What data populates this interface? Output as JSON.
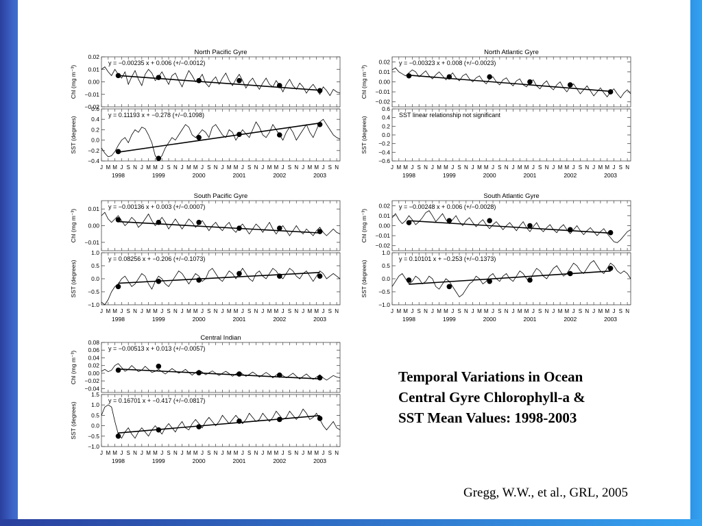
{
  "slide": {
    "heading_lines": [
      "Temporal Variations in Ocean",
      "Central Gyre Chlorophyll-a &",
      "SST Mean Values: 1998-2003"
    ],
    "citation": "Gregg, W.W., et al., GRL,  2005"
  },
  "colors": {
    "ink": "#000000",
    "axis": "#444444",
    "background": "#ffffff",
    "frame_left": "#2a3f9e",
    "frame_right": "#35a2f0"
  },
  "x_axis": {
    "month_letters": [
      "J",
      "M",
      "M",
      "J",
      "S",
      "N",
      "J",
      "M",
      "M",
      "J",
      "S",
      "N",
      "J",
      "M",
      "M",
      "J",
      "S",
      "N",
      "J",
      "M",
      "M",
      "J",
      "S",
      "N",
      "J",
      "M",
      "M",
      "J",
      "S",
      "N",
      "J",
      "M",
      "M",
      "J",
      "S",
      "N"
    ],
    "year_labels": [
      "1998",
      "1999",
      "2000",
      "2001",
      "2002",
      "2003"
    ],
    "range_months": [
      0,
      71
    ]
  },
  "chart_data": [
    {
      "type": "line",
      "title": "North Pacific Gyre",
      "ylabel": "Chl (mg m⁻³)",
      "ylim": [
        -0.02,
        0.02
      ],
      "yticks": [
        "0.02",
        "0.01",
        "0.00",
        "−0.01",
        "−0.02"
      ],
      "fit_label": "y = −0.00235 x + 0.006   (+/−0.0012)",
      "fit": {
        "slope_per_year": -0.00235,
        "intercept": 0.006
      },
      "annual_points": [
        0.005,
        0.0035,
        0.001,
        0.001,
        -0.003,
        -0.007
      ],
      "series": [
        {
          "values": [
            0.01,
            0.012,
            0.008,
            0.005,
            0.01,
            0.006,
            0.003,
            0.008,
            -0.002,
            0.004,
            0.009,
            0.002,
            -0.003,
            0.006,
            0.01,
            0.007,
            0.001,
            0.004,
            0.008,
            0.003,
            -0.002,
            0.005,
            0.007,
            0.001,
            -0.004,
            0.003,
            0.009,
            0.005,
            0,
            0.002,
            0.006,
            -0.001,
            -0.004,
            0.001,
            0.004,
            -0.002,
            0.003,
            0.007,
            0.001,
            -0.003,
            0.002,
            0.006,
            0.001,
            -0.005,
            0,
            0.003,
            -0.002,
            -0.006,
            -0.001,
            0.003,
            -0.002,
            -0.004,
            0.001,
            -0.003,
            -0.008,
            -0.002,
            0.002,
            -0.003,
            -0.006,
            -0.001,
            -0.004,
            -0.009,
            -0.005,
            -0.002,
            -0.006,
            -0.01,
            -0.004,
            -0.007,
            -0.011,
            -0.006,
            -0.008,
            -0.009
          ]
        }
      ]
    },
    {
      "type": "line",
      "title": "",
      "ylabel": "SST (degrees)",
      "ylim": [
        -0.4,
        0.6
      ],
      "yticks": [
        "0.6",
        "0.4",
        "0.2",
        "0.0",
        "−0.2",
        "−0.4"
      ],
      "fit_label": "y = 0.11193 x + −0.278   (+/−0.1098)",
      "fit": {
        "slope_per_year": 0.11193,
        "intercept": -0.278
      },
      "annual_points": [
        -0.22,
        -0.35,
        0.05,
        0.11,
        0.1,
        0.3
      ],
      "series": [
        {
          "values": [
            -0.15,
            -0.25,
            -0.32,
            -0.3,
            -0.22,
            -0.1,
            0,
            0.05,
            -0.05,
            0.1,
            0.2,
            0.15,
            0.25,
            0.22,
            0.1,
            -0.05,
            -0.3,
            -0.38,
            -0.3,
            -0.15,
            -0.05,
            0.05,
            0,
            0.1,
            0.2,
            0.3,
            0.25,
            0.1,
            0.05,
            0.12,
            0.2,
            0.15,
            0.05,
            0.25,
            0.3,
            0.2,
            0.1,
            0.05,
            0.2,
            0.15,
            0,
            0.1,
            0.2,
            0.12,
            0.05,
            0.2,
            0.35,
            0.25,
            0.1,
            0.05,
            0.15,
            0.3,
            0.2,
            0.1,
            0,
            0.15,
            0.25,
            0.15,
            0,
            0.1,
            0.2,
            0.3,
            0.15,
            0.05,
            0.2,
            0.35,
            0.4,
            0.3,
            0.2,
            0.1,
            0.05,
            0.02
          ]
        }
      ]
    },
    {
      "type": "line",
      "title": "North Atlantic Gyre",
      "ylabel": "Chl (mg m⁻³)",
      "ylim": [
        -0.025,
        0.025
      ],
      "yticks": [
        "0.02",
        "0.01",
        "0.00",
        "−0.01",
        "−0.02"
      ],
      "fit_label": "y = −0.00323 x + 0.008   (+/−0.0023)",
      "fit": {
        "slope_per_year": -0.00323,
        "intercept": 0.008
      },
      "annual_points": [
        0.006,
        0.005,
        0.005,
        0.0,
        -0.003,
        -0.01
      ],
      "series": [
        {
          "values": [
            0.012,
            0.014,
            0.01,
            0.008,
            0.006,
            0.009,
            0.012,
            0.01,
            0.005,
            0.008,
            0.011,
            0.006,
            0.003,
            0.007,
            0.01,
            0.006,
            0.002,
            0.005,
            0.009,
            0.004,
            0.001,
            0.006,
            0.008,
            0.003,
            0,
            0.004,
            0.006,
            0.001,
            -0.002,
            0.003,
            0.005,
            0,
            -0.003,
            0.002,
            0.004,
            -0.001,
            -0.004,
            0.001,
            0.003,
            -0.003,
            -0.005,
            0,
            0.002,
            -0.004,
            -0.007,
            -0.002,
            0.001,
            -0.005,
            -0.008,
            -0.003,
            0,
            -0.006,
            -0.01,
            -0.005,
            -0.002,
            -0.007,
            -0.012,
            -0.008,
            -0.004,
            -0.009,
            -0.014,
            -0.01,
            -0.006,
            -0.011,
            -0.015,
            -0.01,
            -0.007,
            -0.012,
            -0.016,
            -0.011,
            -0.008,
            -0.012
          ]
        }
      ]
    },
    {
      "type": "line",
      "title": "",
      "ylabel": "SST (degrees)",
      "ylim": [
        -0.6,
        0.6
      ],
      "yticks": [
        "0.6",
        "0.4",
        "0.2",
        "0.0",
        "−0.2",
        "−0.4",
        "−0.6"
      ],
      "fit_label": "SST linear relationship not significant",
      "fit": null,
      "annual_points": [],
      "series": []
    },
    {
      "type": "line",
      "title": "South Pacific Gyre",
      "ylabel": "Chl (mg m⁻³)",
      "ylim": [
        -0.015,
        0.015
      ],
      "yticks": [
        "0.01",
        "0.00",
        "−0.01"
      ],
      "fit_label": "y = −0.00136 x + 0.003   (+/−0.0007)",
      "fit": {
        "slope_per_year": -0.00136,
        "intercept": 0.003
      },
      "annual_points": [
        0.0035,
        0.002,
        0.002,
        -0.0015,
        -0.0015,
        -0.0035
      ],
      "series": [
        {
          "values": [
            0.006,
            0.008,
            0.004,
            0.002,
            0.004,
            0.006,
            0.003,
            0,
            0.002,
            0.005,
            0.003,
            -0.001,
            0.001,
            0.004,
            0.007,
            0.003,
            0,
            0.002,
            0.005,
            0.002,
            -0.002,
            0.001,
            0.004,
            0.001,
            -0.002,
            0.001,
            0.004,
            0.002,
            -0.001,
            0.001,
            0.003,
            0,
            -0.003,
            0,
            0.002,
            -0.001,
            -0.003,
            0,
            0.002,
            -0.002,
            -0.004,
            -0.001,
            0.001,
            -0.002,
            -0.005,
            -0.002,
            0.001,
            -0.001,
            -0.004,
            -0.001,
            0.002,
            -0.002,
            -0.005,
            -0.002,
            0,
            -0.003,
            -0.006,
            -0.003,
            0,
            -0.003,
            -0.005,
            -0.002,
            -0.004,
            -0.006,
            -0.003,
            -0.001,
            -0.004,
            -0.006,
            -0.004,
            -0.002,
            -0.004,
            -0.005
          ]
        }
      ]
    },
    {
      "type": "line",
      "title": "",
      "ylabel": "SST (degrees)",
      "ylim": [
        -1.0,
        1.0
      ],
      "yticks": [
        "1.0",
        "0.5",
        "0.0",
        "−0.5",
        "−1.0"
      ],
      "fit_label": "y = 0.08256 x + −0.206   (+/−0.1073)",
      "fit": {
        "slope_per_year": 0.08256,
        "intercept": -0.206
      },
      "annual_points": [
        -0.3,
        -0.1,
        -0.05,
        0.2,
        0.1,
        0.1
      ],
      "series": [
        {
          "values": [
            -0.9,
            -1.0,
            -0.8,
            -0.5,
            -0.3,
            -0.2,
            0,
            0.1,
            -0.1,
            -0.3,
            -0.2,
            0,
            0.2,
            0.1,
            -0.2,
            -0.4,
            -0.1,
            0.1,
            0,
            -0.2,
            -0.3,
            -0.1,
            0.1,
            0.3,
            0.2,
            0,
            -0.2,
            0,
            0.2,
            0.1,
            -0.1,
            0,
            0.3,
            0.4,
            0.2,
            0,
            -0.1,
            0.1,
            0.3,
            0.2,
            0,
            0.2,
            0.4,
            0.2,
            0,
            -0.1,
            0.2,
            0.3,
            0.1,
            0,
            0.2,
            0.4,
            0.3,
            0.1,
            0,
            0.2,
            0.4,
            0.3,
            0.1,
            0,
            0.2,
            0.3,
            0.1,
            -0.1,
            0.1,
            0.3,
            0.2,
            0,
            0.1,
            0.2,
            0.1,
            0
          ]
        }
      ]
    },
    {
      "type": "line",
      "title": "South Atlantic Gyre",
      "ylabel": "Chl (mg m⁻³)",
      "ylim": [
        -0.025,
        0.025
      ],
      "yticks": [
        "0.02",
        "0.01",
        "0.00",
        "−0.01",
        "−0.02"
      ],
      "fit_label": "y = −0.00248 x + 0.006   (+/−0.0028)",
      "fit": {
        "slope_per_year": -0.00248,
        "intercept": 0.006
      },
      "annual_points": [
        0.003,
        0.005,
        0.005,
        0.0,
        -0.004,
        -0.007
      ],
      "series": [
        {
          "values": [
            0.008,
            0.012,
            0.006,
            0.002,
            0.005,
            0.01,
            0.006,
            0.001,
            0.004,
            0.008,
            0.013,
            0.015,
            0.01,
            0.004,
            0.008,
            0.012,
            0.006,
            0.002,
            0.006,
            0.01,
            0.004,
            0,
            0.005,
            0.008,
            0.003,
            -0.001,
            0.003,
            0.006,
            0.001,
            -0.003,
            0.001,
            0.004,
            0,
            -0.004,
            0,
            0.003,
            -0.001,
            -0.005,
            0,
            0.004,
            -0.002,
            -0.006,
            -0.001,
            0.003,
            -0.003,
            -0.006,
            -0.002,
            0.001,
            -0.004,
            -0.007,
            -0.002,
            0.001,
            -0.004,
            -0.008,
            -0.004,
            0,
            -0.005,
            -0.009,
            -0.005,
            -0.002,
            -0.006,
            -0.01,
            -0.006,
            -0.003,
            -0.008,
            -0.012,
            -0.016,
            -0.017,
            -0.014,
            -0.01,
            -0.006,
            -0.004
          ]
        }
      ]
    },
    {
      "type": "line",
      "title": "",
      "ylabel": "SST (degrees)",
      "ylim": [
        -1.0,
        1.0
      ],
      "yticks": [
        "1.0",
        "0.5",
        "0.0",
        "−0.5",
        "−1.0"
      ],
      "fit_label": "y = 0.10101 x + −0.253   (+/−0.1373)",
      "fit": {
        "slope_per_year": 0.10101,
        "intercept": -0.253
      },
      "annual_points": [
        -0.05,
        -0.3,
        -0.1,
        -0.05,
        0.2,
        0.4
      ],
      "series": [
        {
          "values": [
            -0.3,
            -0.1,
            0.1,
            0.2,
            0,
            -0.2,
            -0.1,
            0.1,
            0,
            -0.2,
            -0.1,
            0.1,
            0,
            -0.3,
            -0.4,
            -0.2,
            0,
            -0.1,
            -0.3,
            -0.5,
            -0.7,
            -0.6,
            -0.4,
            -0.2,
            -0.1,
            0.1,
            0,
            -0.2,
            -0.1,
            0.1,
            0.2,
            0,
            -0.1,
            0.1,
            0.2,
            0,
            -0.1,
            0.1,
            0.3,
            0.2,
            0,
            -0.1,
            0.2,
            0.4,
            0.3,
            0.1,
            0,
            0.2,
            0.4,
            0.5,
            0.3,
            0.1,
            0.2,
            0.4,
            0.6,
            0.5,
            0.3,
            0.2,
            0.4,
            0.6,
            0.7,
            0.5,
            0.3,
            0.2,
            0.4,
            0.6,
            0.5,
            0.3,
            0.2,
            0.3,
            0.2,
            0
          ]
        }
      ]
    },
    {
      "type": "line",
      "title": "Central Indian",
      "ylabel": "Chl (mg m⁻³)",
      "ylim": [
        -0.05,
        0.08
      ],
      "yticks": [
        "0.08",
        "0.06",
        "0.04",
        "0.02",
        "0.00",
        "−0.02",
        "−0.04"
      ],
      "fit_label": "y = −0.00513 x + 0.013   (+/−0.0057)",
      "fit": {
        "slope_per_year": -0.00513,
        "intercept": 0.013
      },
      "annual_points": [
        0.008,
        0.018,
        0.001,
        -0.002,
        -0.005,
        -0.012
      ],
      "series": [
        {
          "values": [
            0.005,
            0.01,
            0.004,
            0.008,
            0.02,
            0.025,
            0.015,
            0.005,
            0.01,
            0.02,
            0.012,
            0.004,
            0.008,
            0.018,
            0.01,
            0.002,
            0.005,
            0.01,
            0.004,
            -0.002,
            0.005,
            0.012,
            0.006,
            0,
            0.004,
            0.01,
            0.002,
            -0.005,
            0.002,
            0.008,
            0.003,
            -0.004,
            0.001,
            0.006,
            0,
            -0.006,
            0,
            0.005,
            -0.001,
            -0.008,
            -0.002,
            0.004,
            -0.002,
            -0.008,
            -0.003,
            0.003,
            -0.003,
            -0.01,
            -0.004,
            0.002,
            -0.004,
            -0.012,
            -0.005,
            0,
            -0.006,
            -0.012,
            -0.006,
            0,
            -0.008,
            -0.015,
            -0.008,
            -0.002,
            -0.01,
            -0.016,
            -0.01,
            -0.004,
            -0.012,
            -0.018,
            -0.012,
            -0.006,
            -0.01,
            -0.012
          ]
        }
      ]
    },
    {
      "type": "line",
      "title": "",
      "ylabel": "SST (degrees)",
      "ylim": [
        -1.0,
        1.5
      ],
      "yticks": [
        "1.5",
        "1.0",
        "0.5",
        "0.0",
        "−0.5",
        "−1.0"
      ],
      "fit_label": "y = 0.16701 x + −0.417   (+/−0.0817)",
      "fit": {
        "slope_per_year": 0.16701,
        "intercept": -0.417
      },
      "annual_points": [
        -0.5,
        -0.2,
        -0.05,
        0.22,
        0.3,
        0.35
      ],
      "series": [
        {
          "values": [
            0.5,
            0.9,
            1.0,
            0.9,
            0.2,
            -0.4,
            -0.6,
            -0.3,
            -0.1,
            -0.4,
            -0.6,
            -0.3,
            -0.1,
            -0.3,
            -0.5,
            -0.2,
            0,
            -0.2,
            -0.4,
            -0.1,
            0.1,
            -0.1,
            -0.3,
            0,
            0.2,
            -0.1,
            -0.2,
            0.1,
            0.3,
            0.1,
            -0.1,
            0.2,
            0.4,
            0.2,
            0,
            0.2,
            0.5,
            0.3,
            0.1,
            0.3,
            0.5,
            0.3,
            0.1,
            0.3,
            0.6,
            0.4,
            0.2,
            0.3,
            0.6,
            0.4,
            0.2,
            0.4,
            0.7,
            0.5,
            0.3,
            0.4,
            0.7,
            0.5,
            0.3,
            0.5,
            0.8,
            0.6,
            0.3,
            0.4,
            0.6,
            0.3,
            0,
            -0.2,
            0,
            0.2,
            -0.1,
            -0.2
          ]
        }
      ]
    }
  ]
}
